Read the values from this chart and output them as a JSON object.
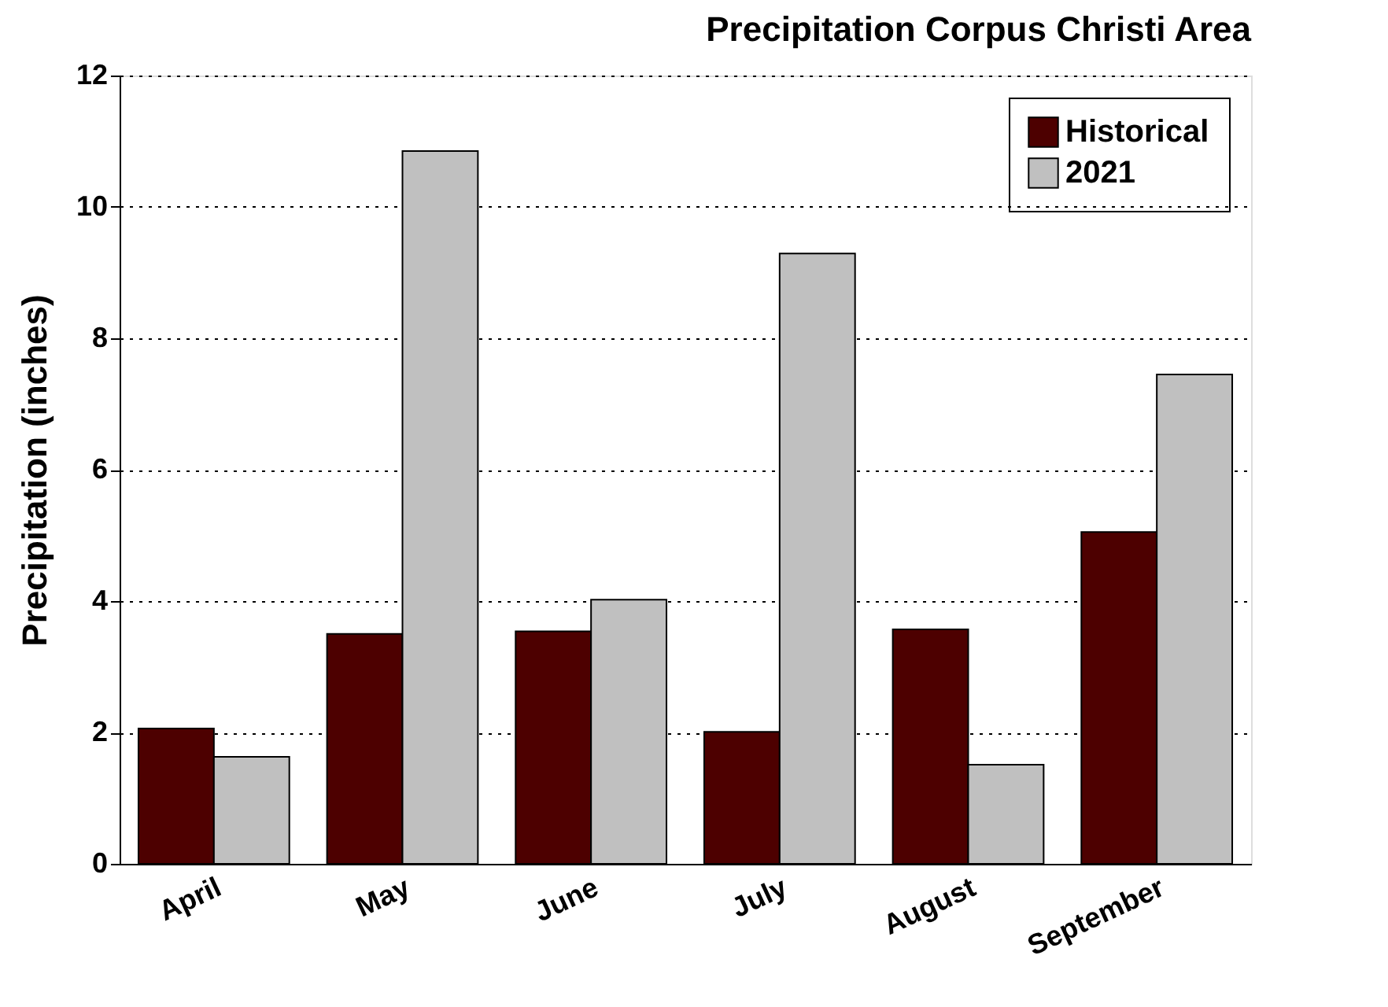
{
  "chart_data": {
    "type": "bar",
    "title": "Precipitation Corpus Christi Area",
    "ylabel": "Precipitation (inches)",
    "categories": [
      "April",
      "May",
      "June",
      "July",
      "August",
      "September"
    ],
    "series": [
      {
        "name": "Historical",
        "color": "#4d0000",
        "values": [
          2.06,
          3.5,
          3.54,
          2.01,
          3.57,
          5.05
        ]
      },
      {
        "name": "2021",
        "color": "#c0c0c0",
        "values": [
          1.63,
          10.85,
          4.02,
          9.29,
          1.51,
          7.45
        ]
      }
    ],
    "ylim": [
      0,
      12
    ],
    "yticks": [
      0,
      2,
      4,
      6,
      8,
      10,
      12
    ],
    "grid": "y",
    "legend": "top right"
  }
}
